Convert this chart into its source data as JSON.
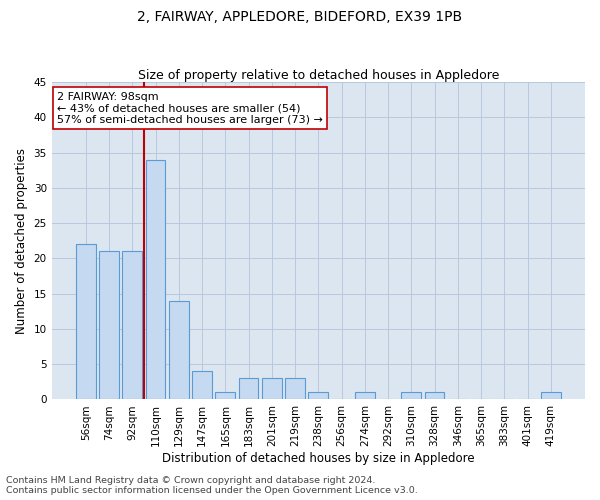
{
  "title": "2, FAIRWAY, APPLEDORE, BIDEFORD, EX39 1PB",
  "subtitle": "Size of property relative to detached houses in Appledore",
  "xlabel": "Distribution of detached houses by size in Appledore",
  "ylabel": "Number of detached properties",
  "categories": [
    "56sqm",
    "74sqm",
    "92sqm",
    "110sqm",
    "129sqm",
    "147sqm",
    "165sqm",
    "183sqm",
    "201sqm",
    "219sqm",
    "238sqm",
    "256sqm",
    "274sqm",
    "292sqm",
    "310sqm",
    "328sqm",
    "346sqm",
    "365sqm",
    "383sqm",
    "401sqm",
    "419sqm"
  ],
  "values": [
    22,
    21,
    21,
    34,
    14,
    4,
    1,
    3,
    3,
    3,
    1,
    0,
    1,
    0,
    1,
    1,
    0,
    0,
    0,
    0,
    1
  ],
  "bar_color": "#c5d9f1",
  "bar_edge_color": "#5b9bd5",
  "vline_x_index": 2,
  "vline_color": "#c00000",
  "annotation_text": "2 FAIRWAY: 98sqm\n← 43% of detached houses are smaller (54)\n57% of semi-detached houses are larger (73) →",
  "annotation_box_color": "#ffffff",
  "annotation_box_edge": "#c00000",
  "ylim": [
    0,
    45
  ],
  "yticks": [
    0,
    5,
    10,
    15,
    20,
    25,
    30,
    35,
    40,
    45
  ],
  "footnote1": "Contains HM Land Registry data © Crown copyright and database right 2024.",
  "footnote2": "Contains public sector information licensed under the Open Government Licence v3.0.",
  "bg_color": "#ffffff",
  "plot_bg_color": "#dce6f1",
  "grid_color": "#b8c8dc",
  "title_fontsize": 10,
  "subtitle_fontsize": 9,
  "axis_label_fontsize": 8.5,
  "tick_fontsize": 7.5,
  "annotation_fontsize": 8,
  "footnote_fontsize": 6.8
}
